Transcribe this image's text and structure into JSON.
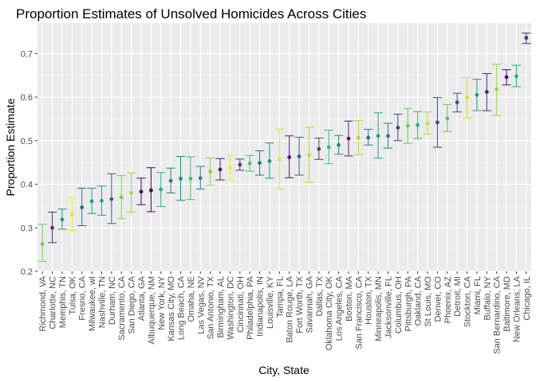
{
  "chart_data": {
    "type": "scatter",
    "title": "Proportion Estimates of Unsolved Homicides Across Cities",
    "xlabel": "City, State",
    "ylabel": "Proportion Estimate",
    "ylim": [
      0.2,
      0.77
    ],
    "yticks": [
      0.2,
      0.3,
      0.4,
      0.5,
      0.6,
      0.7
    ],
    "grid": true,
    "legend": "none",
    "error_bars": true,
    "categories": [
      "Richmond, VA",
      "Charlotte, NC",
      "Memphis, TN",
      "Tulsa, OK",
      "Fresno, CA",
      "Milwaukee, wI",
      "Nashville, TN",
      "Durham, NC",
      "Sacramento, CA",
      "San Diego, CA",
      "Atlanta, GA",
      "Albuquerque, NM",
      "New York, NY",
      "Kansas City, MO",
      "Long Beach, CA",
      "Omaha, NE",
      "Las Vegas, NV",
      "San Antonio, TX",
      "Birmingham, AL",
      "Washington, DC",
      "Cincinnati, OH",
      "Philadelphia, PA",
      "Indianapolis, IN",
      "Louisville, KY",
      "Tampa, FL",
      "Baton Rouge, LA",
      "Fort Worth, TX",
      "Savannah, GA",
      "Dallas, TX",
      "Oklahoma City, OK",
      "Los Angeles, CA",
      "Boston, MA",
      "San Francisco, CA",
      "Houston, TX",
      "Minneapolis, MN",
      "Jacksonville, FL",
      "Columbus, OH",
      "Pittsburgh, PA",
      "Oakland, CA",
      "St Louis, MO",
      "Denver, CO",
      "Phoenix, AZ",
      "Detroit, MI",
      "Stockton, CA",
      "Miami, FL",
      "Buffalo, NY",
      "San Bernardino, CA",
      "Baltimore, MD",
      "New Orleans, LA",
      "Chicago, IL"
    ],
    "estimate": [
      0.263,
      0.3,
      0.319,
      0.331,
      0.347,
      0.361,
      0.362,
      0.366,
      0.37,
      0.38,
      0.383,
      0.386,
      0.388,
      0.408,
      0.413,
      0.413,
      0.414,
      0.429,
      0.434,
      0.438,
      0.445,
      0.448,
      0.449,
      0.453,
      0.457,
      0.462,
      0.464,
      0.467,
      0.481,
      0.485,
      0.49,
      0.505,
      0.507,
      0.507,
      0.511,
      0.511,
      0.53,
      0.534,
      0.536,
      0.54,
      0.542,
      0.551,
      0.588,
      0.599,
      0.605,
      0.612,
      0.618,
      0.646,
      0.648,
      0.736
    ],
    "conf_low": [
      0.223,
      0.266,
      0.297,
      0.294,
      0.305,
      0.333,
      0.329,
      0.31,
      0.321,
      0.336,
      0.353,
      0.337,
      0.349,
      0.38,
      0.363,
      0.365,
      0.389,
      0.398,
      0.41,
      0.408,
      0.432,
      0.43,
      0.421,
      0.414,
      0.389,
      0.415,
      0.421,
      0.404,
      0.457,
      0.447,
      0.469,
      0.465,
      0.468,
      0.49,
      0.46,
      0.483,
      0.5,
      0.494,
      0.505,
      0.515,
      0.485,
      0.521,
      0.566,
      0.552,
      0.569,
      0.569,
      0.558,
      0.628,
      0.624,
      0.723
    ],
    "conf_high": [
      0.308,
      0.336,
      0.343,
      0.37,
      0.391,
      0.391,
      0.396,
      0.424,
      0.42,
      0.426,
      0.414,
      0.438,
      0.427,
      0.437,
      0.464,
      0.463,
      0.441,
      0.46,
      0.459,
      0.466,
      0.458,
      0.466,
      0.477,
      0.495,
      0.527,
      0.511,
      0.508,
      0.531,
      0.506,
      0.524,
      0.512,
      0.545,
      0.546,
      0.526,
      0.564,
      0.54,
      0.561,
      0.574,
      0.567,
      0.566,
      0.599,
      0.583,
      0.609,
      0.645,
      0.641,
      0.654,
      0.675,
      0.663,
      0.673,
      0.747
    ]
  }
}
